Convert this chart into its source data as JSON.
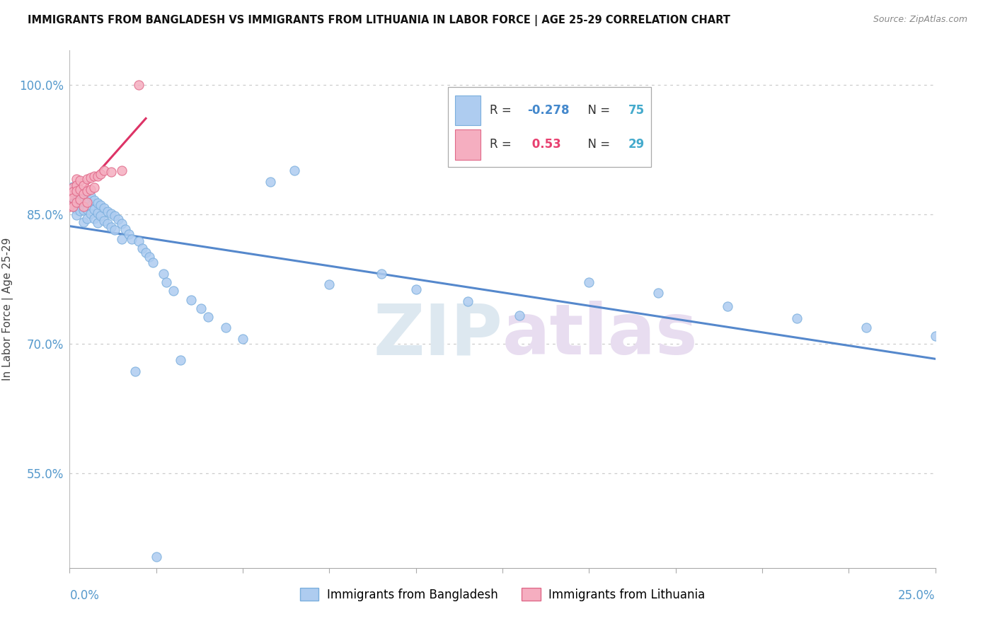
{
  "title": "IMMIGRANTS FROM BANGLADESH VS IMMIGRANTS FROM LITHUANIA IN LABOR FORCE | AGE 25-29 CORRELATION CHART",
  "source": "Source: ZipAtlas.com",
  "ylabel": "In Labor Force | Age 25-29",
  "ymin": 0.44,
  "ymax": 1.04,
  "xmin": 0.0,
  "xmax": 0.25,
  "bangladesh_color": "#aeccf0",
  "bangladesh_edge": "#7aaedd",
  "lithuania_color": "#f5aec0",
  "lithuania_edge": "#e06888",
  "trend_bangladesh_color": "#5588cc",
  "trend_lithuania_color": "#dd3366",
  "R_bangladesh": -0.278,
  "N_bangladesh": 75,
  "R_lithuania": 0.53,
  "N_lithuania": 29,
  "background_color": "#ffffff",
  "grid_color": "#cccccc",
  "ytick_vals": [
    0.55,
    0.7,
    0.85,
    1.0
  ],
  "ytick_color": "#5599cc",
  "xtick_color": "#5599cc",
  "bangladesh_x": [
    0.0,
    0.001,
    0.001,
    0.002,
    0.002,
    0.002,
    0.002,
    0.002,
    0.003,
    0.003,
    0.003,
    0.003,
    0.003,
    0.004,
    0.004,
    0.004,
    0.004,
    0.005,
    0.005,
    0.005,
    0.005,
    0.006,
    0.006,
    0.006,
    0.007,
    0.007,
    0.007,
    0.008,
    0.008,
    0.008,
    0.009,
    0.009,
    0.01,
    0.01,
    0.011,
    0.011,
    0.012,
    0.012,
    0.013,
    0.013,
    0.014,
    0.015,
    0.015,
    0.016,
    0.017,
    0.018,
    0.019,
    0.02,
    0.021,
    0.022,
    0.023,
    0.024,
    0.025,
    0.027,
    0.028,
    0.03,
    0.032,
    0.035,
    0.038,
    0.04,
    0.045,
    0.05,
    0.058,
    0.065,
    0.075,
    0.09,
    0.1,
    0.115,
    0.13,
    0.15,
    0.17,
    0.19,
    0.21,
    0.23,
    0.25
  ],
  "bangladesh_y": [
    0.87,
    0.882,
    0.862,
    0.878,
    0.871,
    0.862,
    0.856,
    0.849,
    0.877,
    0.871,
    0.865,
    0.86,
    0.854,
    0.872,
    0.865,
    0.855,
    0.841,
    0.876,
    0.866,
    0.856,
    0.845,
    0.871,
    0.86,
    0.851,
    0.866,
    0.856,
    0.845,
    0.863,
    0.852,
    0.84,
    0.861,
    0.848,
    0.857,
    0.843,
    0.853,
    0.839,
    0.851,
    0.835,
    0.848,
    0.832,
    0.844,
    0.839,
    0.821,
    0.833,
    0.827,
    0.821,
    0.668,
    0.819,
    0.811,
    0.806,
    0.801,
    0.794,
    0.453,
    0.781,
    0.771,
    0.761,
    0.681,
    0.751,
    0.741,
    0.731,
    0.719,
    0.706,
    0.888,
    0.901,
    0.769,
    0.781,
    0.763,
    0.749,
    0.733,
    0.771,
    0.759,
    0.743,
    0.729,
    0.719,
    0.709
  ],
  "lithuania_x": [
    0.0,
    0.0,
    0.001,
    0.001,
    0.001,
    0.001,
    0.002,
    0.002,
    0.002,
    0.002,
    0.003,
    0.003,
    0.003,
    0.004,
    0.004,
    0.004,
    0.005,
    0.005,
    0.005,
    0.006,
    0.006,
    0.007,
    0.007,
    0.008,
    0.009,
    0.01,
    0.012,
    0.015,
    0.02
  ],
  "lithuania_y": [
    0.873,
    0.859,
    0.881,
    0.876,
    0.869,
    0.859,
    0.891,
    0.884,
    0.877,
    0.864,
    0.889,
    0.879,
    0.867,
    0.884,
    0.874,
    0.859,
    0.891,
    0.877,
    0.864,
    0.893,
    0.879,
    0.894,
    0.881,
    0.894,
    0.897,
    0.901,
    0.899,
    0.901,
    1.0
  ]
}
